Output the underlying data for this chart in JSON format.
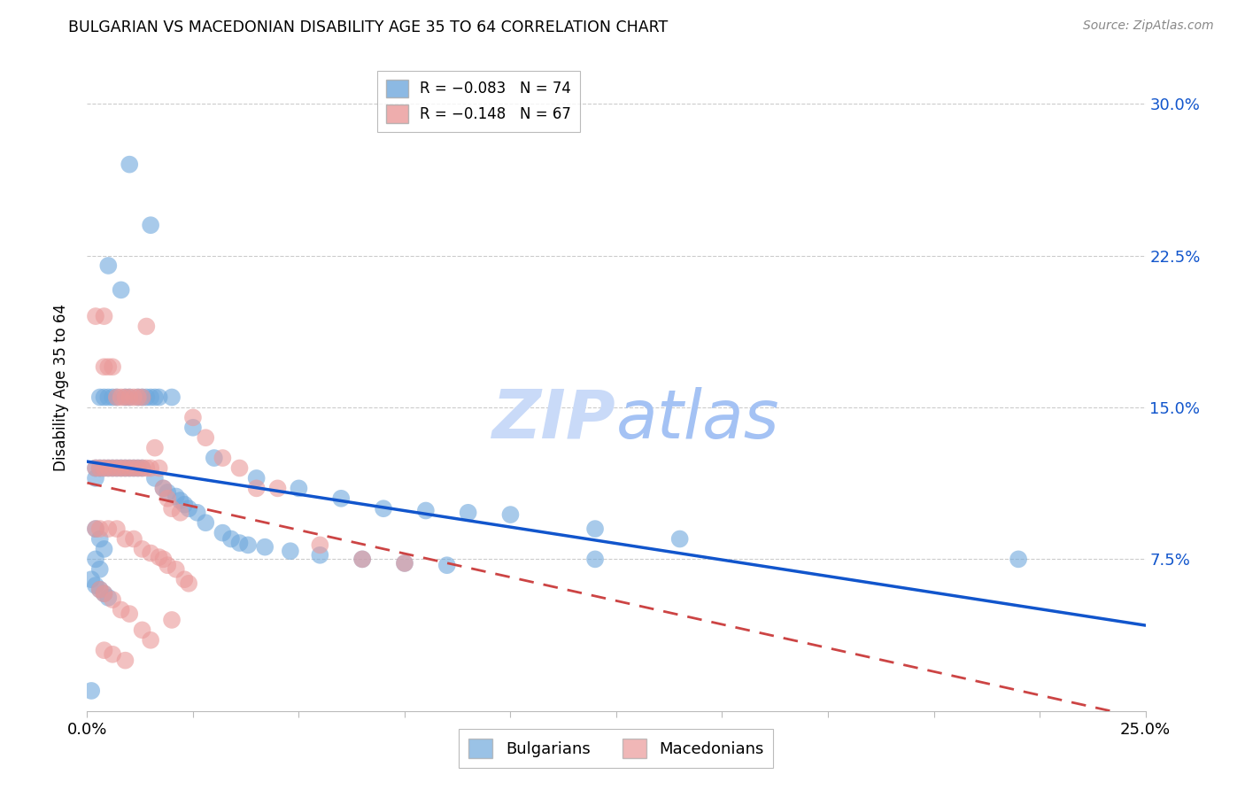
{
  "title": "BULGARIAN VS MACEDONIAN DISABILITY AGE 35 TO 64 CORRELATION CHART",
  "source": "Source: ZipAtlas.com",
  "ylabel": "Disability Age 35 to 64",
  "ytick_labels": [
    "7.5%",
    "15.0%",
    "22.5%",
    "30.0%"
  ],
  "ytick_values": [
    7.5,
    15.0,
    22.5,
    30.0
  ],
  "xlim": [
    0.0,
    25.0
  ],
  "ylim": [
    0.0,
    32.0
  ],
  "legend_blue_r": "R = −0.083",
  "legend_blue_n": "N = 74",
  "legend_pink_r": "R = −0.148",
  "legend_pink_n": "N = 67",
  "legend_blue_label": "Bulgarians",
  "legend_pink_label": "Macedonians",
  "blue_color": "#6fa8dc",
  "pink_color": "#ea9999",
  "trendline_blue_color": "#1155cc",
  "trendline_pink_color": "#cc4444",
  "background_color": "#ffffff",
  "blue_x": [
    0.5,
    1.0,
    1.5,
    0.8,
    0.2,
    0.3,
    0.4,
    0.5,
    0.6,
    0.7,
    0.9,
    1.0,
    1.2,
    1.3,
    1.4,
    1.5,
    1.6,
    1.7,
    0.2,
    0.3,
    0.4,
    0.5,
    0.6,
    0.7,
    0.8,
    0.9,
    1.0,
    1.1,
    1.2,
    1.3,
    2.0,
    2.5,
    3.0,
    4.0,
    5.0,
    6.0,
    7.0,
    8.0,
    9.0,
    10.0,
    12.0,
    14.0,
    1.6,
    1.8,
    1.9,
    2.1,
    2.2,
    2.3,
    2.4,
    2.6,
    2.8,
    3.2,
    3.4,
    3.6,
    3.8,
    4.2,
    4.8,
    5.5,
    6.5,
    7.5,
    8.5,
    22.0,
    0.2,
    0.3,
    0.4,
    0.2,
    0.3,
    0.1,
    0.2,
    0.3,
    0.4,
    0.5,
    12.0,
    0.1
  ],
  "blue_y": [
    22.0,
    27.0,
    24.0,
    20.8,
    11.5,
    15.5,
    15.5,
    15.5,
    15.5,
    15.5,
    15.5,
    15.5,
    15.5,
    15.5,
    15.5,
    15.5,
    15.5,
    15.5,
    12.0,
    12.0,
    12.0,
    12.0,
    12.0,
    12.0,
    12.0,
    12.0,
    12.0,
    12.0,
    12.0,
    12.0,
    15.5,
    14.0,
    12.5,
    11.5,
    11.0,
    10.5,
    10.0,
    9.9,
    9.8,
    9.7,
    9.0,
    8.5,
    11.5,
    11.0,
    10.8,
    10.6,
    10.4,
    10.2,
    10.0,
    9.8,
    9.3,
    8.8,
    8.5,
    8.3,
    8.2,
    8.1,
    7.9,
    7.7,
    7.5,
    7.3,
    7.2,
    7.5,
    9.0,
    8.5,
    8.0,
    7.5,
    7.0,
    6.5,
    6.2,
    6.0,
    5.8,
    5.6,
    7.5,
    1.0
  ],
  "pink_x": [
    0.2,
    0.4,
    0.4,
    0.5,
    0.6,
    0.7,
    0.8,
    0.9,
    1.0,
    1.1,
    1.2,
    1.3,
    1.4,
    0.2,
    0.3,
    0.4,
    0.5,
    0.6,
    0.7,
    0.8,
    0.9,
    1.0,
    1.1,
    1.2,
    1.3,
    1.4,
    1.5,
    1.6,
    1.7,
    1.8,
    1.9,
    2.0,
    2.2,
    2.5,
    2.8,
    3.2,
    3.6,
    4.0,
    4.5,
    5.5,
    6.5,
    7.5,
    0.2,
    0.3,
    0.5,
    0.7,
    0.9,
    1.1,
    1.3,
    1.5,
    1.7,
    1.8,
    1.9,
    2.1,
    2.3,
    2.4,
    0.3,
    0.4,
    0.6,
    0.8,
    1.0,
    1.3,
    1.5,
    2.0,
    0.4,
    0.6,
    0.9
  ],
  "pink_y": [
    19.5,
    19.5,
    17.0,
    17.0,
    17.0,
    15.5,
    15.5,
    15.5,
    15.5,
    15.5,
    15.5,
    15.5,
    19.0,
    12.0,
    12.0,
    12.0,
    12.0,
    12.0,
    12.0,
    12.0,
    12.0,
    12.0,
    12.0,
    12.0,
    12.0,
    12.0,
    12.0,
    13.0,
    12.0,
    11.0,
    10.5,
    10.0,
    9.8,
    14.5,
    13.5,
    12.5,
    12.0,
    11.0,
    11.0,
    8.2,
    7.5,
    7.3,
    9.0,
    9.0,
    9.0,
    9.0,
    8.5,
    8.5,
    8.0,
    7.8,
    7.6,
    7.5,
    7.2,
    7.0,
    6.5,
    6.3,
    6.0,
    5.8,
    5.5,
    5.0,
    4.8,
    4.0,
    3.5,
    4.5,
    3.0,
    2.8,
    2.5
  ]
}
